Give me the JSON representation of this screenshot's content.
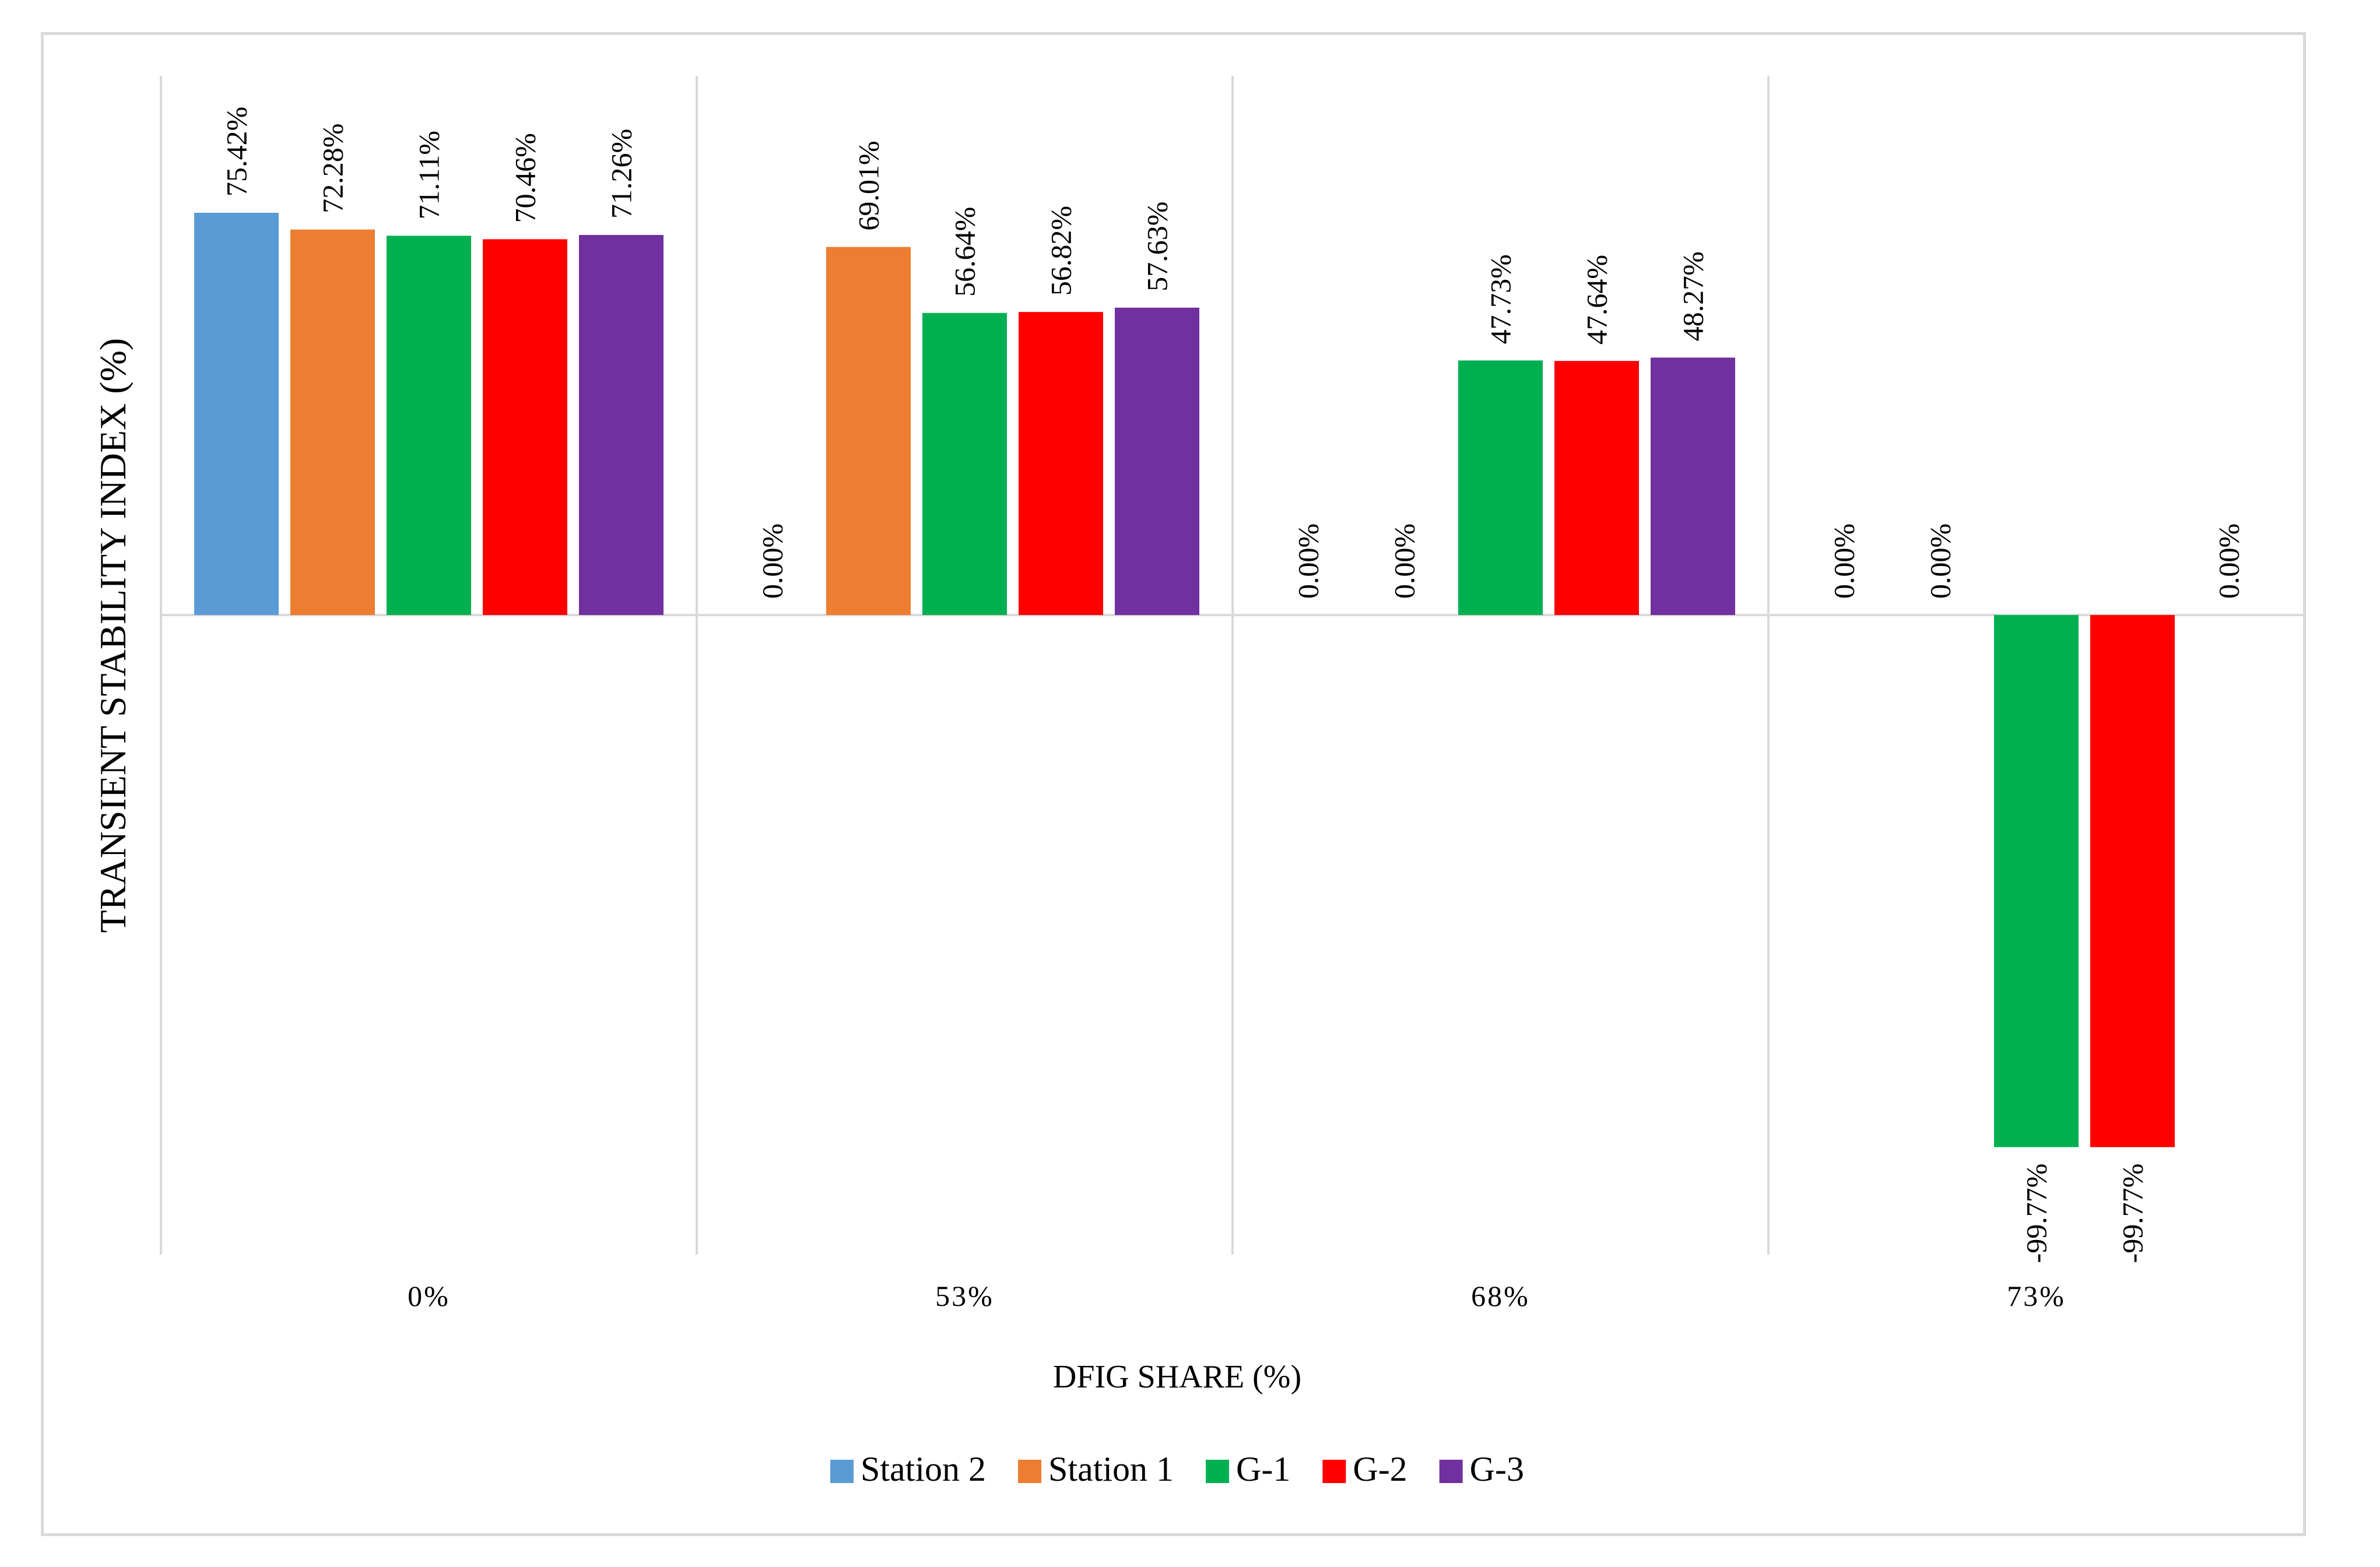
{
  "chart_data": {
    "type": "bar",
    "title": "",
    "xlabel": "DFIG SHARE (%)",
    "ylabel": "TRANSIENT STABILITY INDEX (%)",
    "categories": [
      "0%",
      "53%",
      "68%",
      "73%"
    ],
    "series": [
      {
        "name": "Station 2",
        "color": "#5b9bd5",
        "values": [
          75.42,
          0.0,
          0.0,
          0.0
        ],
        "labels": [
          "75.42%",
          "0.00%",
          "0.00%",
          "0.00%"
        ]
      },
      {
        "name": "Station 1",
        "color": "#ed7d31",
        "values": [
          72.28,
          69.01,
          0.0,
          0.0
        ],
        "labels": [
          "72.28%",
          "69.01%",
          "0.00%",
          "0.00%"
        ]
      },
      {
        "name": "G-1",
        "color": "#00b050",
        "values": [
          71.11,
          56.64,
          47.73,
          -99.77
        ],
        "labels": [
          "71.11%",
          "56.64%",
          "47.73%",
          "-99.77%"
        ]
      },
      {
        "name": "G-2",
        "color": "#ff0000",
        "values": [
          70.46,
          56.82,
          47.64,
          -99.77
        ],
        "labels": [
          "70.46%",
          "56.82%",
          "47.64%",
          "-99.77%"
        ]
      },
      {
        "name": "G-3",
        "color": "#7030a0",
        "values": [
          71.26,
          57.63,
          48.27,
          0.0
        ],
        "labels": [
          "71.26%",
          "57.63%",
          "48.27%",
          "0.00%"
        ]
      }
    ],
    "legend_position": "bottom",
    "grid": "vertical category separators"
  }
}
